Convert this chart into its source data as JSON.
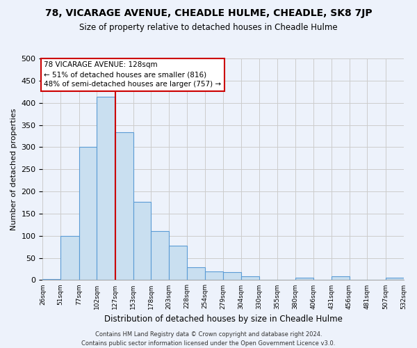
{
  "title": "78, VICARAGE AVENUE, CHEADLE HULME, CHEADLE, SK8 7JP",
  "subtitle": "Size of property relative to detached houses in Cheadle Hulme",
  "xlabel": "Distribution of detached houses by size in Cheadle Hulme",
  "ylabel": "Number of detached properties",
  "bin_edges": [
    26,
    51,
    77,
    102,
    127,
    153,
    178,
    203,
    228,
    254,
    279,
    304,
    330,
    355,
    380,
    406,
    431,
    456,
    481,
    507,
    532
  ],
  "bin_labels": [
    "26sqm",
    "51sqm",
    "77sqm",
    "102sqm",
    "127sqm",
    "153sqm",
    "178sqm",
    "203sqm",
    "228sqm",
    "254sqm",
    "279sqm",
    "304sqm",
    "330sqm",
    "355sqm",
    "380sqm",
    "406sqm",
    "431sqm",
    "456sqm",
    "481sqm",
    "507sqm",
    "532sqm"
  ],
  "counts": [
    3,
    99,
    301,
    413,
    333,
    176,
    111,
    77,
    29,
    19,
    18,
    9,
    0,
    0,
    6,
    0,
    9,
    0,
    0,
    5
  ],
  "bar_facecolor": "#c9dff0",
  "bar_edgecolor": "#5b9bd5",
  "grid_color": "#cccccc",
  "background_color": "#edf2fb",
  "property_line_x": 128,
  "annotation_title": "78 VICARAGE AVENUE: 128sqm",
  "annotation_line1": "← 51% of detached houses are smaller (816)",
  "annotation_line2": "48% of semi-detached houses are larger (757) →",
  "box_color": "#cc0000",
  "ylim": [
    0,
    500
  ],
  "yticks": [
    0,
    50,
    100,
    150,
    200,
    250,
    300,
    350,
    400,
    450,
    500
  ],
  "footer_line1": "Contains HM Land Registry data © Crown copyright and database right 2024.",
  "footer_line2": "Contains public sector information licensed under the Open Government Licence v3.0."
}
